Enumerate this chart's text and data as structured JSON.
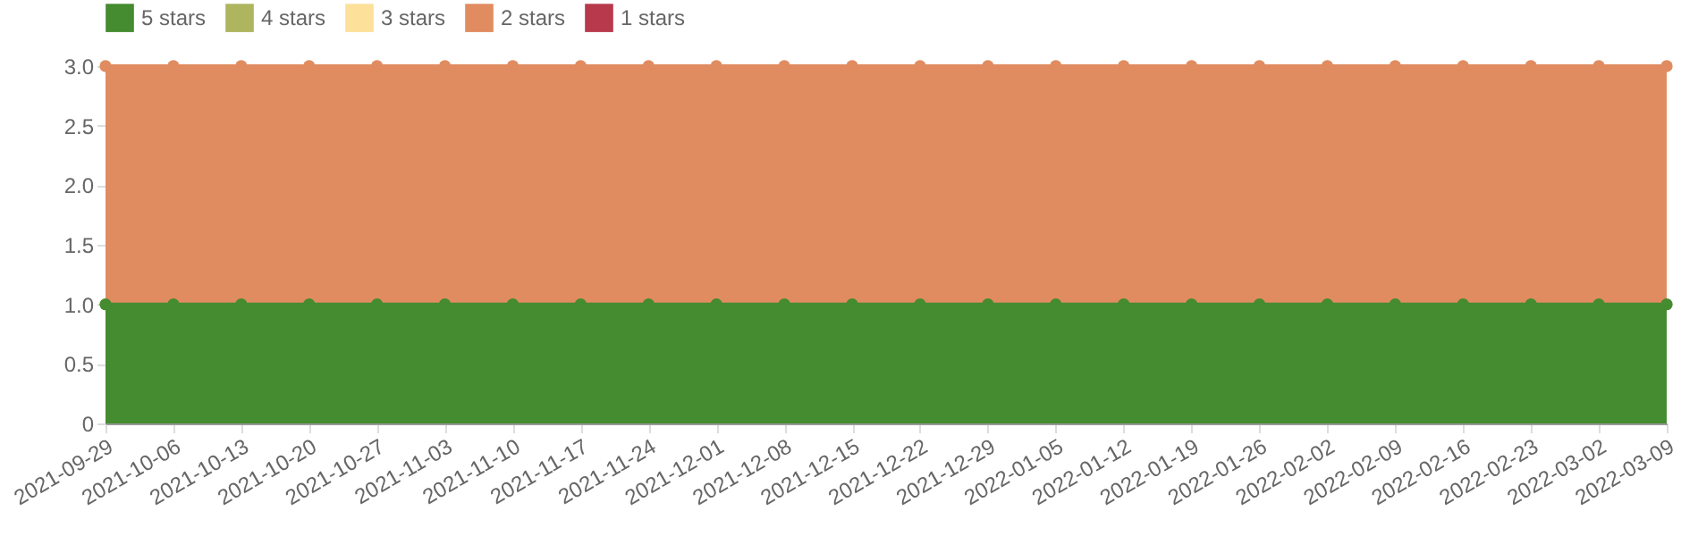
{
  "chart_data": {
    "type": "area",
    "stacked": true,
    "categories": [
      "2021-09-29",
      "2021-10-06",
      "2021-10-13",
      "2021-10-20",
      "2021-10-27",
      "2021-11-03",
      "2021-11-10",
      "2021-11-17",
      "2021-11-24",
      "2021-12-01",
      "2021-12-08",
      "2021-12-15",
      "2021-12-22",
      "2021-12-29",
      "2022-01-05",
      "2022-01-12",
      "2022-01-19",
      "2022-01-26",
      "2022-02-02",
      "2022-02-09",
      "2022-02-16",
      "2022-02-23",
      "2022-03-02",
      "2022-03-09"
    ],
    "series": [
      {
        "name": "5 stars",
        "color": "#458b30",
        "values": [
          1,
          1,
          1,
          1,
          1,
          1,
          1,
          1,
          1,
          1,
          1,
          1,
          1,
          1,
          1,
          1,
          1,
          1,
          1,
          1,
          1,
          1,
          1,
          1
        ]
      },
      {
        "name": "4 stars",
        "color": "#adb55f",
        "values": [
          null,
          null,
          null,
          null,
          null,
          null,
          null,
          null,
          null,
          null,
          null,
          null,
          null,
          null,
          null,
          null,
          null,
          null,
          null,
          null,
          null,
          null,
          null,
          null
        ]
      },
      {
        "name": "3 stars",
        "color": "#fde19a",
        "values": [
          null,
          null,
          null,
          null,
          null,
          null,
          null,
          null,
          null,
          null,
          null,
          null,
          null,
          null,
          null,
          null,
          null,
          null,
          null,
          null,
          null,
          null,
          null,
          null
        ]
      },
      {
        "name": "2 stars",
        "color": "#e08c60",
        "values": [
          2,
          2,
          2,
          2,
          2,
          2,
          2,
          2,
          2,
          2,
          2,
          2,
          2,
          2,
          2,
          2,
          2,
          2,
          2,
          2,
          2,
          2,
          2,
          2
        ]
      },
      {
        "name": "1 stars",
        "color": "#b8394c",
        "values": [
          null,
          null,
          null,
          null,
          null,
          null,
          null,
          null,
          null,
          null,
          null,
          null,
          null,
          null,
          null,
          null,
          null,
          null,
          null,
          null,
          null,
          null,
          null,
          null
        ]
      }
    ],
    "ylim": [
      0,
      3
    ],
    "yticks": [
      0,
      0.5,
      {
        "value": 1,
        "label": "1.0"
      },
      1.5,
      {
        "value": 2,
        "label": "2.0"
      },
      2.5,
      {
        "value": 3,
        "label": "3.0"
      }
    ],
    "grid": false,
    "legend": "top",
    "marker": "circle"
  }
}
